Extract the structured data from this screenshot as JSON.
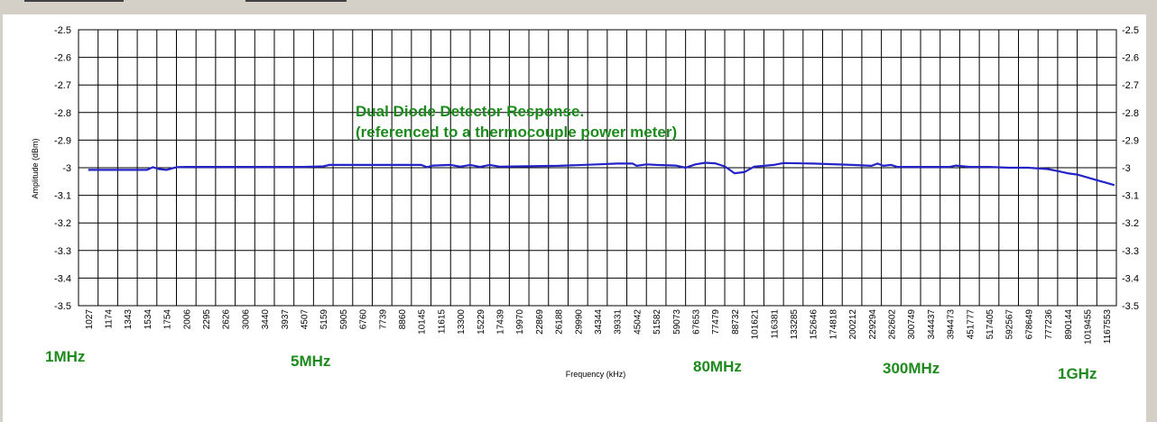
{
  "chart_data": {
    "type": "line",
    "title": "Dual Diode Detector Response.",
    "subtitle": "(referenced to a thermocouple power meter)",
    "xlabel": "Frequency (kHz)",
    "ylabel": "Amplitude (dBm)",
    "ylim": [
      -3.5,
      -2.5
    ],
    "ytick_step": 0.1,
    "ytick_labels": [
      "-2.5",
      "-2.6",
      "-2.7",
      "-2.8",
      "-2.9",
      "-3",
      "-3.1",
      "-3.2",
      "-3.3",
      "-3.4",
      "-3.5"
    ],
    "grid": true,
    "x_tick_labels": [
      "1027",
      "1174",
      "1343",
      "1534",
      "1754",
      "2006",
      "2295",
      "2626",
      "3006",
      "3440",
      "3937",
      "4507",
      "5159",
      "5905",
      "6760",
      "7739",
      "8860",
      "10145",
      "11615",
      "13300",
      "15229",
      "17439",
      "19970",
      "22869",
      "26188",
      "29990",
      "34344",
      "39331",
      "45042",
      "51582",
      "59073",
      "67653",
      "77479",
      "88732",
      "101621",
      "116381",
      "133285",
      "152646",
      "174818",
      "200212",
      "229294",
      "262602",
      "300749",
      "344437",
      "394473",
      "451777",
      "517405",
      "592567",
      "678649",
      "777236",
      "890144",
      "1019455",
      "1167553"
    ],
    "band_labels": [
      "1MHz",
      "5MHz",
      "80MHz",
      "300MHz",
      "1GHz"
    ],
    "series": [
      {
        "color": "#2323c8",
        "points": [
          [
            0,
            -3.008
          ],
          [
            1,
            -3.008
          ],
          [
            2,
            -3.008
          ],
          [
            3,
            -3.008
          ],
          [
            3.3,
            -2.998
          ],
          [
            3.6,
            -3.005
          ],
          [
            4,
            -3.008
          ],
          [
            4.5,
            -2.998
          ],
          [
            5,
            -2.997
          ],
          [
            8,
            -2.997
          ],
          [
            11,
            -2.997
          ],
          [
            12,
            -2.995
          ],
          [
            12.3,
            -2.99
          ],
          [
            13,
            -2.99
          ],
          [
            16,
            -2.99
          ],
          [
            17,
            -2.99
          ],
          [
            17.3,
            -2.998
          ],
          [
            17.6,
            -2.992
          ],
          [
            18.5,
            -2.99
          ],
          [
            19,
            -2.996
          ],
          [
            19.5,
            -2.99
          ],
          [
            20,
            -2.997
          ],
          [
            20.5,
            -2.99
          ],
          [
            21,
            -2.996
          ],
          [
            22,
            -2.995
          ],
          [
            24,
            -2.993
          ],
          [
            26,
            -2.988
          ],
          [
            27,
            -2.985
          ],
          [
            27.8,
            -2.985
          ],
          [
            28,
            -2.993
          ],
          [
            28.5,
            -2.988
          ],
          [
            29,
            -2.99
          ],
          [
            30,
            -2.992
          ],
          [
            30.5,
            -3.0
          ],
          [
            31,
            -2.988
          ],
          [
            31.5,
            -2.982
          ],
          [
            32,
            -2.984
          ],
          [
            32.5,
            -2.995
          ],
          [
            33,
            -3.02
          ],
          [
            33.5,
            -3.016
          ],
          [
            34,
            -2.996
          ],
          [
            34.5,
            -2.993
          ],
          [
            35,
            -2.99
          ],
          [
            35.5,
            -2.983
          ],
          [
            37,
            -2.985
          ],
          [
            39,
            -2.99
          ],
          [
            40,
            -2.993
          ],
          [
            40.3,
            -2.985
          ],
          [
            40.6,
            -2.993
          ],
          [
            41,
            -2.99
          ],
          [
            41.3,
            -2.997
          ],
          [
            42,
            -2.997
          ],
          [
            44,
            -2.997
          ],
          [
            44.3,
            -2.992
          ],
          [
            44.7,
            -2.995
          ],
          [
            45,
            -2.997
          ],
          [
            46,
            -2.997
          ],
          [
            47,
            -3.0
          ],
          [
            48,
            -3.0
          ],
          [
            49,
            -3.005
          ],
          [
            49.5,
            -3.012
          ],
          [
            50,
            -3.02
          ],
          [
            50.5,
            -3.025
          ],
          [
            51,
            -3.035
          ],
          [
            51.5,
            -3.045
          ],
          [
            52,
            -3.055
          ],
          [
            52.4,
            -3.063
          ]
        ]
      }
    ]
  }
}
